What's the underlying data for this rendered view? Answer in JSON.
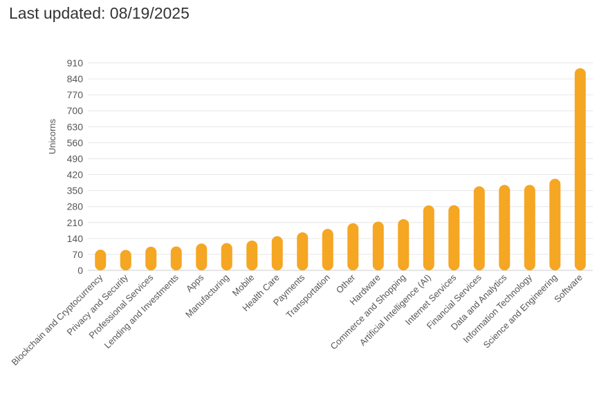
{
  "header": {
    "last_updated": "Last updated: 08/19/2025"
  },
  "chart_data": {
    "type": "bar",
    "title": "",
    "xlabel": "",
    "ylabel": "Unicorns",
    "ylim": [
      0,
      910
    ],
    "yticks": [
      0,
      70,
      140,
      210,
      280,
      350,
      420,
      490,
      560,
      630,
      700,
      770,
      840,
      910
    ],
    "grid": true,
    "bar_color": "#F5A623",
    "categories": [
      "Blockchain and Cryptocurrency",
      "Privacy and Security",
      "Professional Services",
      "Lending and Investments",
      "Apps",
      "Manufacturing",
      "Mobile",
      "Health Care",
      "Payments",
      "Transportation",
      "Other",
      "Hardware",
      "Commerce and Shopping",
      "Artificial Intelligence (AI)",
      "Internet Services",
      "Financial Services",
      "Data and Analytics",
      "Information Technology",
      "Science and Engineering",
      "Software"
    ],
    "values": [
      91,
      90,
      104,
      105,
      118,
      120,
      131,
      150,
      167,
      182,
      207,
      214,
      225,
      285,
      286,
      369,
      375,
      375,
      402,
      887
    ]
  }
}
